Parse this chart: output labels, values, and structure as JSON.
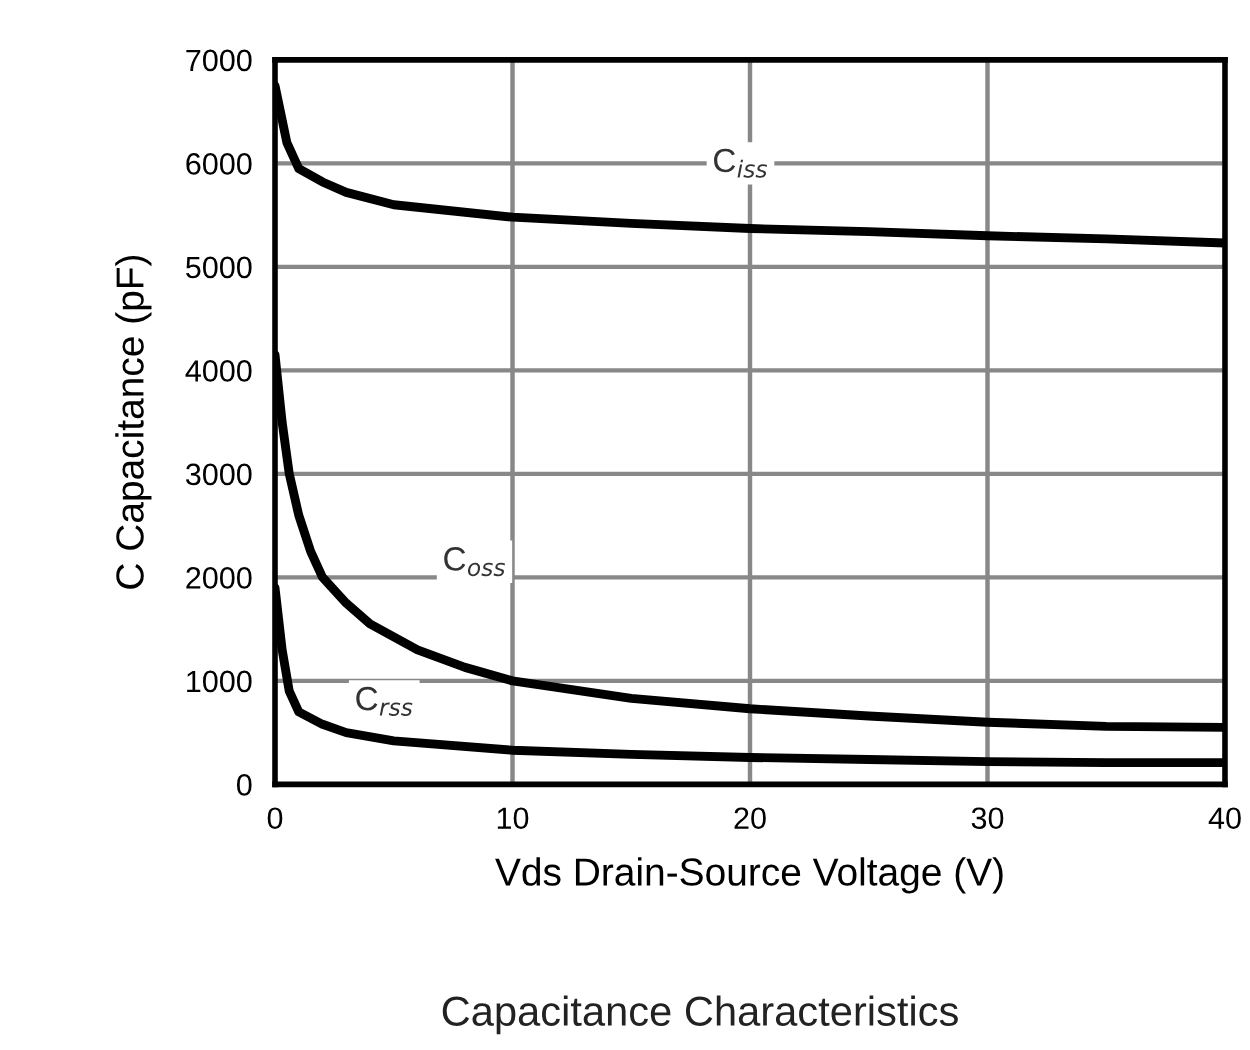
{
  "chart_data": {
    "type": "line",
    "title": "Capacitance Characteristics",
    "xlabel": "Vds Drain-Source Voltage (V)",
    "ylabel": "C Capacitance (pF)",
    "xlim": [
      0,
      40
    ],
    "xticks": [
      0,
      10,
      20,
      30,
      40
    ],
    "ylim": [
      0,
      7000
    ],
    "yticks": [
      0,
      1000,
      2000,
      3000,
      4000,
      5000,
      6000,
      7000
    ],
    "grid": true,
    "line_style": "solid",
    "series": [
      {
        "color": "#000000",
        "x": [
          0,
          0.5,
          1,
          2,
          3,
          5,
          10,
          15,
          20,
          25,
          30,
          35,
          40
        ],
        "values": [
          6750,
          6200,
          5950,
          5820,
          5720,
          5600,
          5480,
          5420,
          5370,
          5340,
          5300,
          5270,
          5230
        ]
      },
      {
        "color": "#000000",
        "x": [
          0,
          0.3,
          0.6,
          1,
          1.5,
          2,
          3,
          4,
          6,
          8,
          10,
          15,
          20,
          25,
          30,
          35,
          40
        ],
        "values": [
          4150,
          3500,
          3000,
          2600,
          2250,
          2000,
          1750,
          1550,
          1300,
          1130,
          1000,
          830,
          730,
          660,
          600,
          560,
          550
        ]
      },
      {
        "color": "#000000",
        "x": [
          0,
          0.3,
          0.6,
          1,
          2,
          3,
          5,
          10,
          15,
          20,
          25,
          30,
          35,
          40
        ],
        "values": [
          1900,
          1300,
          900,
          700,
          580,
          500,
          420,
          330,
          290,
          260,
          240,
          220,
          210,
          210
        ]
      }
    ],
    "annotations": [
      {
        "text": "C$_{iss}$",
        "x": 19.6,
        "y": 6000
      },
      {
        "text": "C$_{oss}$",
        "x": 8.4,
        "y": 2150
      },
      {
        "text": "C$_{rss}$",
        "x": 4.6,
        "y": 800
      }
    ]
  }
}
